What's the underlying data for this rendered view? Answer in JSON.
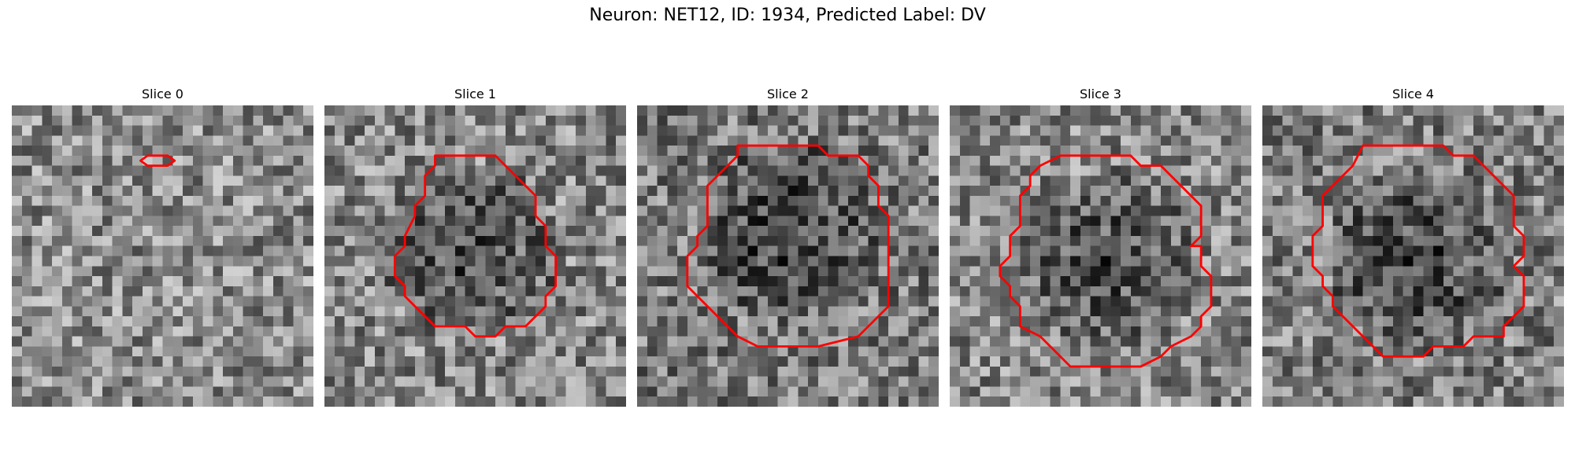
{
  "title": "Neuron: NET12, ID: 1934, Predicted Label: DV",
  "outline_color": "#ff0000",
  "panels": [
    {
      "label": "Slice 0",
      "seed": 11,
      "mean": 0.55,
      "outline": [
        [
          13.5,
          5.0
        ],
        [
          15.5,
          5.0
        ],
        [
          16.2,
          5.5
        ],
        [
          15.5,
          6.0
        ],
        [
          13.5,
          6.0
        ],
        [
          12.8,
          5.5
        ]
      ]
    },
    {
      "label": "Slice 1",
      "seed": 23,
      "mean": 0.45,
      "outline": [
        [
          11,
          5
        ],
        [
          17,
          5
        ],
        [
          18,
          6
        ],
        [
          19,
          7
        ],
        [
          21,
          9
        ],
        [
          21,
          11
        ],
        [
          22,
          12
        ],
        [
          22,
          14
        ],
        [
          23,
          15
        ],
        [
          23,
          18
        ],
        [
          22,
          19
        ],
        [
          22,
          20
        ],
        [
          20,
          22
        ],
        [
          18,
          22
        ],
        [
          17,
          23
        ],
        [
          15,
          23
        ],
        [
          14,
          22
        ],
        [
          11,
          22
        ],
        [
          10,
          21
        ],
        [
          9,
          20
        ],
        [
          8,
          19
        ],
        [
          8,
          18
        ],
        [
          7,
          17
        ],
        [
          7,
          15
        ],
        [
          8,
          14
        ],
        [
          8,
          13
        ],
        [
          9,
          11
        ],
        [
          9,
          10
        ],
        [
          10,
          9
        ],
        [
          10,
          7
        ],
        [
          11,
          6
        ]
      ]
    },
    {
      "label": "Slice 2",
      "seed": 37,
      "mean": 0.4,
      "outline": [
        [
          10,
          4
        ],
        [
          18,
          4
        ],
        [
          19,
          5
        ],
        [
          22,
          5
        ],
        [
          23,
          6
        ],
        [
          23,
          7
        ],
        [
          24,
          8
        ],
        [
          24,
          10
        ],
        [
          25,
          11
        ],
        [
          25,
          20
        ],
        [
          24,
          21
        ],
        [
          22,
          23
        ],
        [
          18,
          24
        ],
        [
          12,
          24
        ],
        [
          10,
          23
        ],
        [
          8,
          21
        ],
        [
          5,
          18
        ],
        [
          5,
          15
        ],
        [
          6,
          14
        ],
        [
          6,
          13
        ],
        [
          7,
          12
        ],
        [
          7,
          8
        ],
        [
          8,
          7
        ],
        [
          9,
          6
        ],
        [
          10,
          5
        ]
      ]
    },
    {
      "label": "Slice 3",
      "seed": 53,
      "mean": 0.45,
      "outline": [
        [
          11,
          5
        ],
        [
          18,
          5
        ],
        [
          19,
          6
        ],
        [
          21,
          6
        ],
        [
          22,
          7
        ],
        [
          23,
          8
        ],
        [
          24,
          9
        ],
        [
          25,
          10
        ],
        [
          25,
          13
        ],
        [
          24,
          14
        ],
        [
          25,
          14
        ],
        [
          25,
          16
        ],
        [
          26,
          17
        ],
        [
          26,
          20
        ],
        [
          25,
          21
        ],
        [
          25,
          22
        ],
        [
          24,
          23
        ],
        [
          22,
          24
        ],
        [
          21,
          25
        ],
        [
          19,
          26
        ],
        [
          12,
          26
        ],
        [
          11,
          25
        ],
        [
          10,
          24
        ],
        [
          9,
          23
        ],
        [
          7,
          22
        ],
        [
          7,
          20
        ],
        [
          6,
          19
        ],
        [
          6,
          18
        ],
        [
          5,
          17
        ],
        [
          5,
          16
        ],
        [
          6,
          15
        ],
        [
          6,
          13
        ],
        [
          7,
          12
        ],
        [
          7,
          9
        ],
        [
          8,
          8
        ],
        [
          8,
          7
        ],
        [
          9,
          6
        ]
      ]
    },
    {
      "label": "Slice 4",
      "seed": 71,
      "mean": 0.42,
      "outline": [
        [
          10,
          4
        ],
        [
          18,
          4
        ],
        [
          19,
          5
        ],
        [
          21,
          5
        ],
        [
          22,
          6
        ],
        [
          25,
          9
        ],
        [
          25,
          12
        ],
        [
          26,
          13
        ],
        [
          26,
          15
        ],
        [
          25,
          16
        ],
        [
          26,
          17
        ],
        [
          26,
          20
        ],
        [
          25,
          21
        ],
        [
          24,
          22
        ],
        [
          24,
          23
        ],
        [
          21,
          23
        ],
        [
          20,
          24
        ],
        [
          17,
          24
        ],
        [
          16,
          25
        ],
        [
          12,
          25
        ],
        [
          11,
          24
        ],
        [
          10,
          23
        ],
        [
          9,
          22
        ],
        [
          8,
          21
        ],
        [
          7,
          20
        ],
        [
          7,
          19
        ],
        [
          6,
          18
        ],
        [
          6,
          17
        ],
        [
          5,
          16
        ],
        [
          5,
          13
        ],
        [
          6,
          12
        ],
        [
          6,
          9
        ],
        [
          7,
          8
        ],
        [
          8,
          7
        ],
        [
          9,
          6
        ]
      ]
    }
  ]
}
